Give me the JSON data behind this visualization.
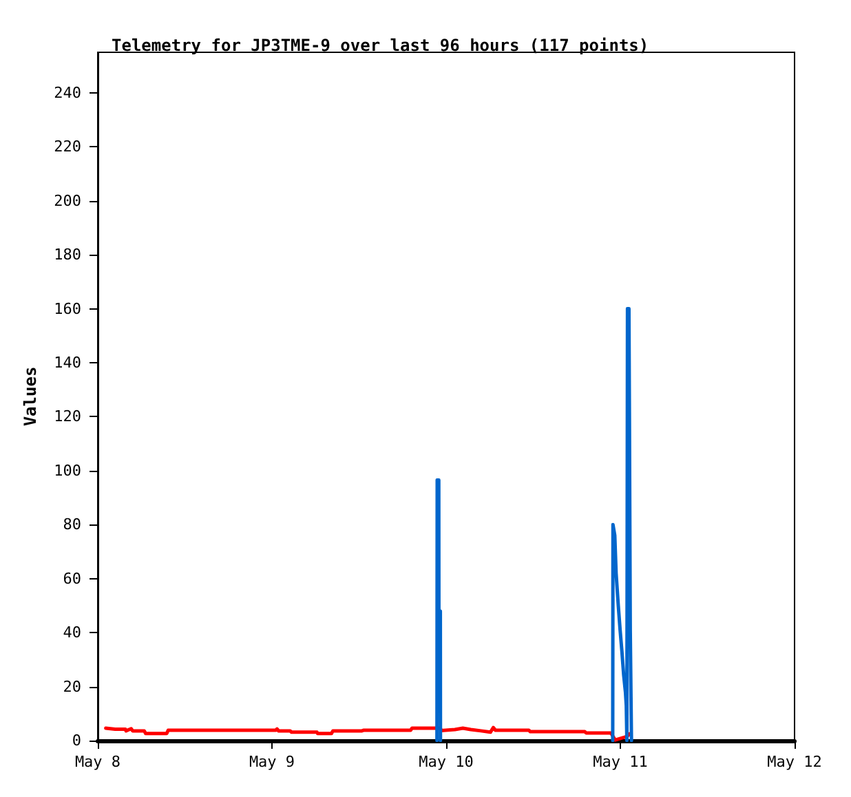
{
  "chart_data": {
    "type": "line",
    "title": "Telemetry for JP3TME-9 over last 96 hours (117 points)",
    "ylabel": "Values",
    "xlim": [
      "--05-08",
      "--05-12"
    ],
    "xticks": [
      {
        "value": "--05-08",
        "label": "May 8"
      },
      {
        "value": "--05-09",
        "label": "May 9"
      },
      {
        "value": "--05-10",
        "label": "May 10"
      },
      {
        "value": "--05-11",
        "label": "May 11"
      },
      {
        "value": "--05-12",
        "label": "May 12"
      }
    ],
    "ylim": [
      0,
      255
    ],
    "yticks": [
      0,
      20,
      40,
      60,
      80,
      100,
      120,
      140,
      160,
      180,
      200,
      220,
      240
    ],
    "grid": false,
    "marker": "none",
    "line_style": "solid",
    "series": [
      {
        "color": "#ff0000",
        "x": [
          "--05-08T01:06",
          "--05-08T02:24",
          "--05-08T03:48",
          "--05-08T03:54",
          "--05-08T04:36",
          "--05-08T04:48",
          "--05-08T06:24",
          "--05-08T06:36",
          "--05-08T09:30",
          "--05-08T09:42",
          "--05-09T00:30",
          "--05-09T00:42",
          "--05-09T00:54",
          "--05-09T02:30",
          "--05-09T02:42",
          "--05-09T06:12",
          "--05-09T06:18",
          "--05-09T08:12",
          "--05-09T08:24",
          "--05-09T12:24",
          "--05-09T12:36",
          "--05-09T19:06",
          "--05-09T19:18",
          "--05-09T23:12",
          "--05-09T23:18",
          "--05-10T01:12",
          "--05-10T02:18",
          "--05-10T03:24",
          "--05-10T04:48",
          "--05-10T06:06",
          "--05-10T06:30",
          "--05-10T06:48",
          "--05-10T11:24",
          "--05-10T11:36",
          "--05-10T19:06",
          "--05-10T19:18",
          "--05-10T22:42",
          "--05-10T23:18",
          "--05-11T00:54",
          "--05-11T01:18"
        ],
        "values": [
          4.6,
          4.2,
          4.2,
          3.6,
          4.4,
          3.6,
          3.6,
          2.6,
          2.6,
          3.8,
          3.8,
          4.3,
          3.6,
          3.6,
          3.1,
          3.1,
          2.6,
          2.6,
          3.6,
          3.6,
          3.8,
          3.8,
          4.6,
          4.6,
          3.7,
          4.1,
          4.6,
          4.1,
          3.6,
          3.1,
          4.8,
          3.8,
          3.8,
          3.3,
          3.3,
          2.8,
          2.8,
          0.2,
          1.5,
          2.5
        ]
      },
      {
        "color": "#0066cc",
        "x": [
          "--05-09T22:44",
          "--05-09T22:46",
          "--05-09T22:59",
          "--05-09T23:00",
          "--05-09T23:12",
          "--05-09T23:13",
          "--05-10T12:00",
          "--05-10T22:57",
          "--05-10T22:59",
          "--05-10T23:14",
          "--05-10T23:25",
          "--05-10T23:43",
          "--05-10T23:58",
          "--05-11T00:13",
          "--05-11T00:27",
          "--05-11T00:42",
          "--05-11T00:49",
          "--05-11T00:54",
          "--05-11T00:59",
          "--05-11T01:11",
          "--05-11T01:15",
          "--05-11T01:22",
          "--05-11T01:32"
        ],
        "values": [
          0,
          96.5,
          96.5,
          48,
          48,
          0,
          null,
          0,
          80,
          76,
          62,
          50,
          41,
          33,
          24.5,
          18,
          13,
          0,
          160,
          160,
          120,
          41,
          0
        ]
      }
    ]
  }
}
